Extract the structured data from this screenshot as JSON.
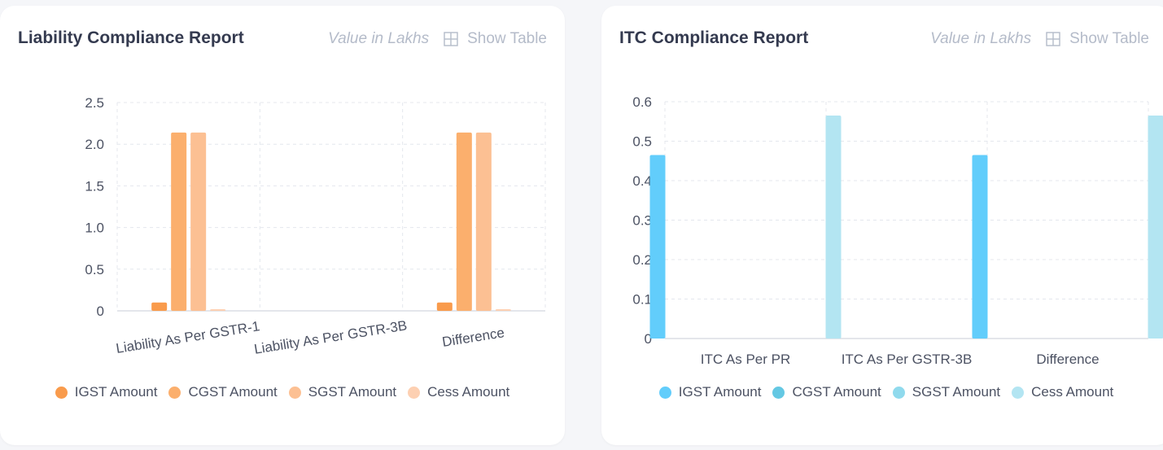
{
  "charts": [
    {
      "id": "liability",
      "title": "Liability Compliance Report",
      "unit_label": "Value in Lakhs",
      "show_table_label": "Show Table",
      "chart_data": {
        "type": "bar",
        "title": "Liability Compliance Report",
        "xlabel": "",
        "ylabel": "",
        "categories": [
          "Liability As Per GSTR-1",
          "Liability As Per GSTR-3B",
          "Difference"
        ],
        "series": [
          {
            "name": "IGST Amount",
            "color": "#f99b4c",
            "values": [
              0.1,
              0,
              0.1
            ]
          },
          {
            "name": "CGST Amount",
            "color": "#fbaf6d",
            "values": [
              2.14,
              0,
              2.14
            ]
          },
          {
            "name": "SGST Amount",
            "color": "#fcc093",
            "values": [
              2.14,
              0,
              2.14
            ]
          },
          {
            "name": "Cess Amount",
            "color": "#fdd0b2",
            "values": [
              0.01,
              0,
              0.01
            ]
          }
        ],
        "ylim": [
          0,
          2.5
        ],
        "yticks": [
          "0",
          "0.5",
          "1.0",
          "1.5",
          "2.0",
          "2.5"
        ],
        "grid": true,
        "legend": "bottom"
      }
    },
    {
      "id": "itc",
      "title": "ITC Compliance Report",
      "unit_label": "Value in Lakhs",
      "show_table_label": "Show Table",
      "chart_data": {
        "type": "bar",
        "title": "ITC Compliance Report",
        "xlabel": "",
        "ylabel": "",
        "categories": [
          "ITC As Per PR",
          "ITC As Per GSTR-3B",
          "Difference"
        ],
        "series": [
          {
            "name": "IGST Amount",
            "color": "#62cdfb",
            "values": [
              0.465,
              0,
              0.465
            ]
          },
          {
            "name": "CGST Amount",
            "color": "#64c8e3",
            "values": [
              0,
              0,
              0
            ]
          },
          {
            "name": "SGST Amount",
            "color": "#90daed",
            "values": [
              0,
              0,
              0
            ]
          },
          {
            "name": "Cess Amount",
            "color": "#b3e5f2",
            "values": [
              0.565,
              0,
              0.565
            ]
          }
        ],
        "ylim": [
          0,
          0.6
        ],
        "yticks": [
          "0",
          "0.1",
          "0.2",
          "0.3",
          "0.4",
          "0.5",
          "0.6"
        ],
        "grid": true,
        "legend": "bottom"
      }
    }
  ]
}
